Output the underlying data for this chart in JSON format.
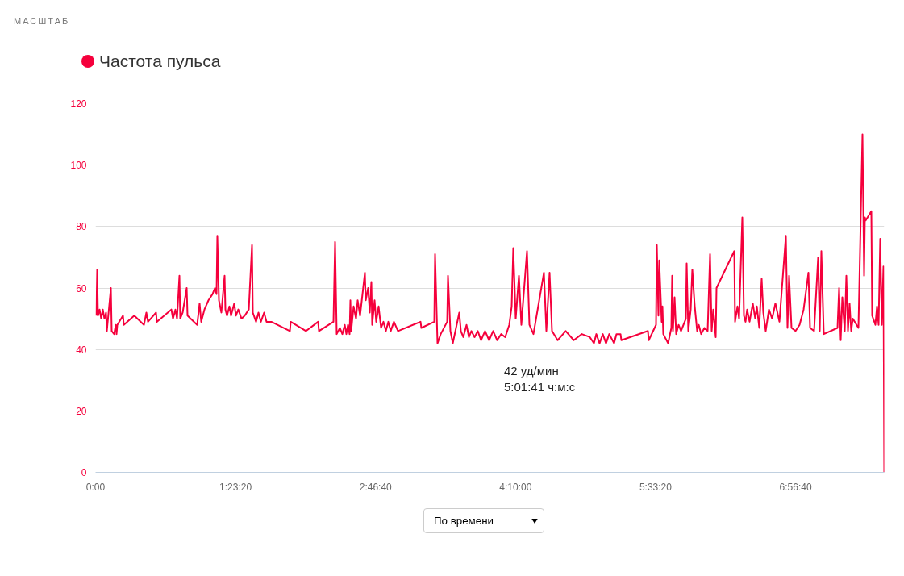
{
  "chart_data": {
    "type": "line",
    "grid": "y",
    "legend": "top left",
    "marker": "none",
    "line_style": "solid",
    "xlim": [
      0,
      7.824
    ],
    "ylim": [
      0,
      120
    ],
    "xticks": [
      {
        "value": 0,
        "label": "0:00"
      },
      {
        "value": 1.3889,
        "label": "1:23:20"
      },
      {
        "value": 2.7778,
        "label": "2:46:40"
      },
      {
        "value": 4.1667,
        "label": "4:10:00"
      },
      {
        "value": 5.5556,
        "label": "5:33:20"
      },
      {
        "value": 6.9444,
        "label": "6:56:40"
      }
    ],
    "yticks": [
      0,
      20,
      40,
      60,
      80,
      100,
      120
    ],
    "annotations": [
      "МАСШТАБ",
      {
        "text": "42 уд/мин\n5:01:41 ч:м:с",
        "x": 5.028,
        "y": 42
      },
      "По времени"
    ],
    "x": [
      0.008,
      0.016,
      0.024,
      0.04,
      0.056,
      0.072,
      0.088,
      0.104,
      0.112,
      0.152,
      0.16,
      0.184,
      0.2,
      0.208,
      0.216,
      0.272,
      0.28,
      0.384,
      0.48,
      0.504,
      0.52,
      0.6,
      0.608,
      0.752,
      0.768,
      0.792,
      0.808,
      0.832,
      0.84,
      0.864,
      0.904,
      0.912,
      1.008,
      1.032,
      1.048,
      1.08,
      1.12,
      1.16,
      1.184,
      1.2,
      1.208,
      1.224,
      1.248,
      1.28,
      1.288,
      1.304,
      1.328,
      1.344,
      1.376,
      1.392,
      1.416,
      1.448,
      1.48,
      1.52,
      1.552,
      1.56,
      1.592,
      1.616,
      1.64,
      1.672,
      1.696,
      1.744,
      1.928,
      1.936,
      2.088,
      2.208,
      2.216,
      2.36,
      2.376,
      2.392,
      2.424,
      2.448,
      2.472,
      2.488,
      2.504,
      2.52,
      2.528,
      2.536,
      2.56,
      2.584,
      2.6,
      2.624,
      2.672,
      2.68,
      2.704,
      2.72,
      2.736,
      2.744,
      2.768,
      2.784,
      2.808,
      2.832,
      2.856,
      2.88,
      2.904,
      2.928,
      2.96,
      3.0,
      3.224,
      3.232,
      3.36,
      3.368,
      3.392,
      3.424,
      3.488,
      3.496,
      3.52,
      3.544,
      3.608,
      3.624,
      3.648,
      3.68,
      3.704,
      3.728,
      3.76,
      3.792,
      3.824,
      3.864,
      3.904,
      3.944,
      3.984,
      4.024,
      4.064,
      4.104,
      4.128,
      4.144,
      4.168,
      4.2,
      4.224,
      4.28,
      4.304,
      4.344,
      4.448,
      4.472,
      4.504,
      4.528,
      4.584,
      4.664,
      4.744,
      4.824,
      4.904,
      4.944,
      4.968,
      5.0,
      5.032,
      5.064,
      5.096,
      5.144,
      5.168,
      5.208,
      5.216,
      5.48,
      5.488,
      5.56,
      5.568,
      5.584,
      5.592,
      5.616,
      5.624,
      5.632,
      5.68,
      5.712,
      5.72,
      5.728,
      5.744,
      5.76,
      5.784,
      5.808,
      5.856,
      5.864,
      5.88,
      5.904,
      5.92,
      5.944,
      5.968,
      5.984,
      6.008,
      6.04,
      6.072,
      6.096,
      6.112,
      6.128,
      6.152,
      6.16,
      6.336,
      6.344,
      6.368,
      6.384,
      6.416,
      6.432,
      6.448,
      6.464,
      6.488,
      6.52,
      6.544,
      6.56,
      6.584,
      6.608,
      6.624,
      6.648,
      6.68,
      6.712,
      6.744,
      6.784,
      6.848,
      6.864,
      6.88,
      6.904,
      6.944,
      6.984,
      7.024,
      7.072,
      7.088,
      7.128,
      7.168,
      7.184,
      7.2,
      7.224,
      7.36,
      7.376,
      7.392,
      7.408,
      7.432,
      7.448,
      7.464,
      7.48,
      7.496,
      7.512,
      7.568,
      7.608,
      7.624,
      7.632,
      7.64,
      7.696,
      7.704,
      7.736,
      7.752,
      7.768,
      7.784,
      7.8,
      7.816,
      7.824
    ],
    "series": [
      {
        "name": "Частота пульса",
        "color": "#f5003c",
        "values": [
          51,
          66,
          51,
          53,
          50,
          53,
          50,
          52,
          46,
          60,
          46,
          45,
          48,
          45,
          48,
          51,
          48,
          51,
          48,
          52,
          49,
          52,
          49,
          53,
          50,
          53,
          50,
          64,
          50,
          52,
          60,
          51,
          48,
          55,
          49,
          53,
          56,
          58,
          60,
          58,
          77,
          56,
          52,
          64,
          53,
          51,
          54,
          51,
          55,
          51,
          53,
          50,
          51,
          53,
          74,
          52,
          49,
          52,
          49,
          52,
          49,
          49,
          46,
          49,
          46,
          49,
          46,
          49,
          75,
          45,
          47,
          45,
          48,
          45,
          48,
          45,
          56,
          46,
          54,
          50,
          56,
          51,
          65,
          56,
          60,
          52,
          62,
          48,
          56,
          49,
          54,
          47,
          49,
          46,
          49,
          46,
          49,
          46,
          49,
          47,
          49,
          71,
          42,
          45,
          49,
          64,
          46,
          42,
          52,
          46,
          44,
          48,
          44,
          46,
          44,
          46,
          43,
          46,
          43,
          46,
          43,
          45,
          44,
          48,
          54,
          73,
          50,
          64,
          48,
          72,
          48,
          45,
          65,
          46,
          65,
          46,
          43,
          46,
          43,
          45,
          44,
          42,
          45,
          42,
          45,
          42,
          45,
          42,
          45,
          45,
          43,
          46,
          43,
          48,
          74,
          51,
          69,
          49,
          54,
          45,
          42,
          47,
          64,
          46,
          57,
          45,
          48,
          46,
          50,
          68,
          46,
          53,
          66,
          54,
          46,
          48,
          45,
          47,
          46,
          71,
          46,
          53,
          44,
          60,
          72,
          49,
          54,
          50,
          83,
          51,
          49,
          53,
          49,
          55,
          50,
          54,
          47,
          63,
          52,
          46,
          53,
          50,
          55,
          49,
          77,
          47,
          64,
          47,
          46,
          48,
          53,
          65,
          47,
          46,
          70,
          46,
          72,
          45,
          47,
          60,
          43,
          57,
          46,
          64,
          46,
          55,
          46,
          50,
          47,
          110,
          64,
          83,
          82,
          85,
          51,
          48,
          54,
          48,
          76,
          48,
          67,
          0
        ]
      }
    ]
  }
}
